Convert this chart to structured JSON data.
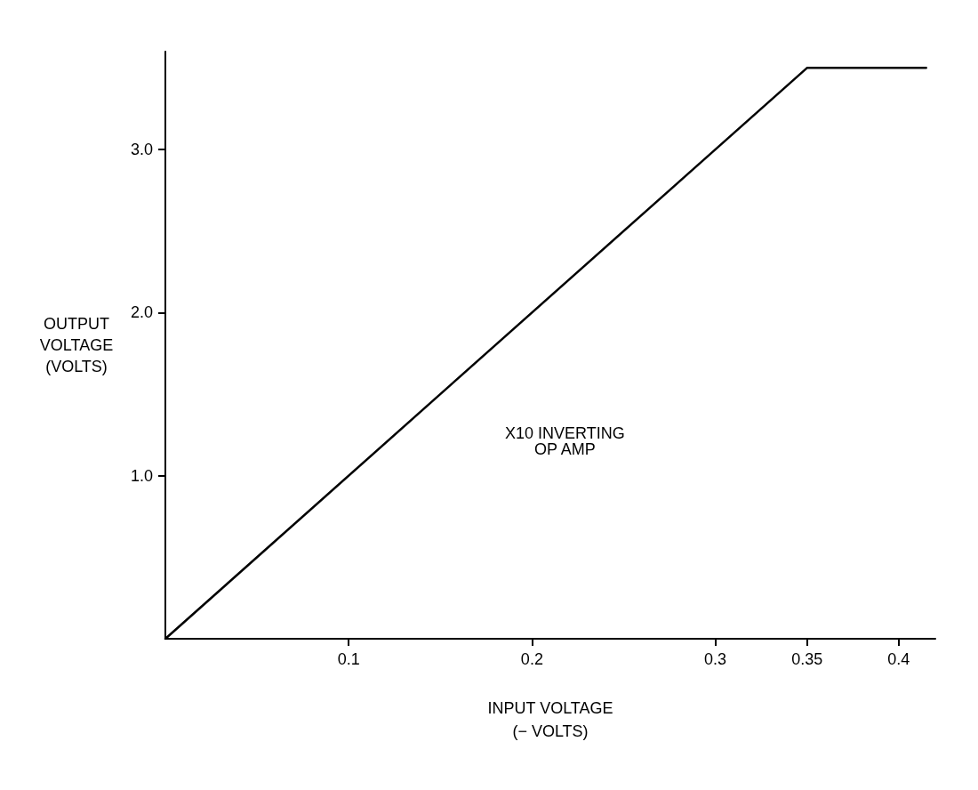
{
  "chart_data": {
    "type": "line",
    "xlabel": "INPUT VOLTAGE\n(− VOLTS)",
    "ylabel": "OUTPUT\nVOLTAGE\n(VOLTS)",
    "annotations": [
      "X10 INVERTING\nOP AMP"
    ],
    "series": [
      {
        "x": [
          0,
          0.35,
          0.415
        ],
        "values": [
          0,
          3.5,
          3.5
        ],
        "color": "#000000"
      }
    ],
    "xlim": [
      0,
      0.42
    ],
    "xticks": [
      0.1,
      0.2,
      0.3,
      0.35,
      0.4
    ],
    "ylim": [
      0,
      3.6
    ],
    "yticks": [
      {
        "value": 1,
        "label": "1.0"
      },
      {
        "value": 2,
        "label": "2.0"
      },
      {
        "value": 3,
        "label": "3.0"
      }
    ],
    "grid": false,
    "marker": "none",
    "line_style": "solid"
  }
}
